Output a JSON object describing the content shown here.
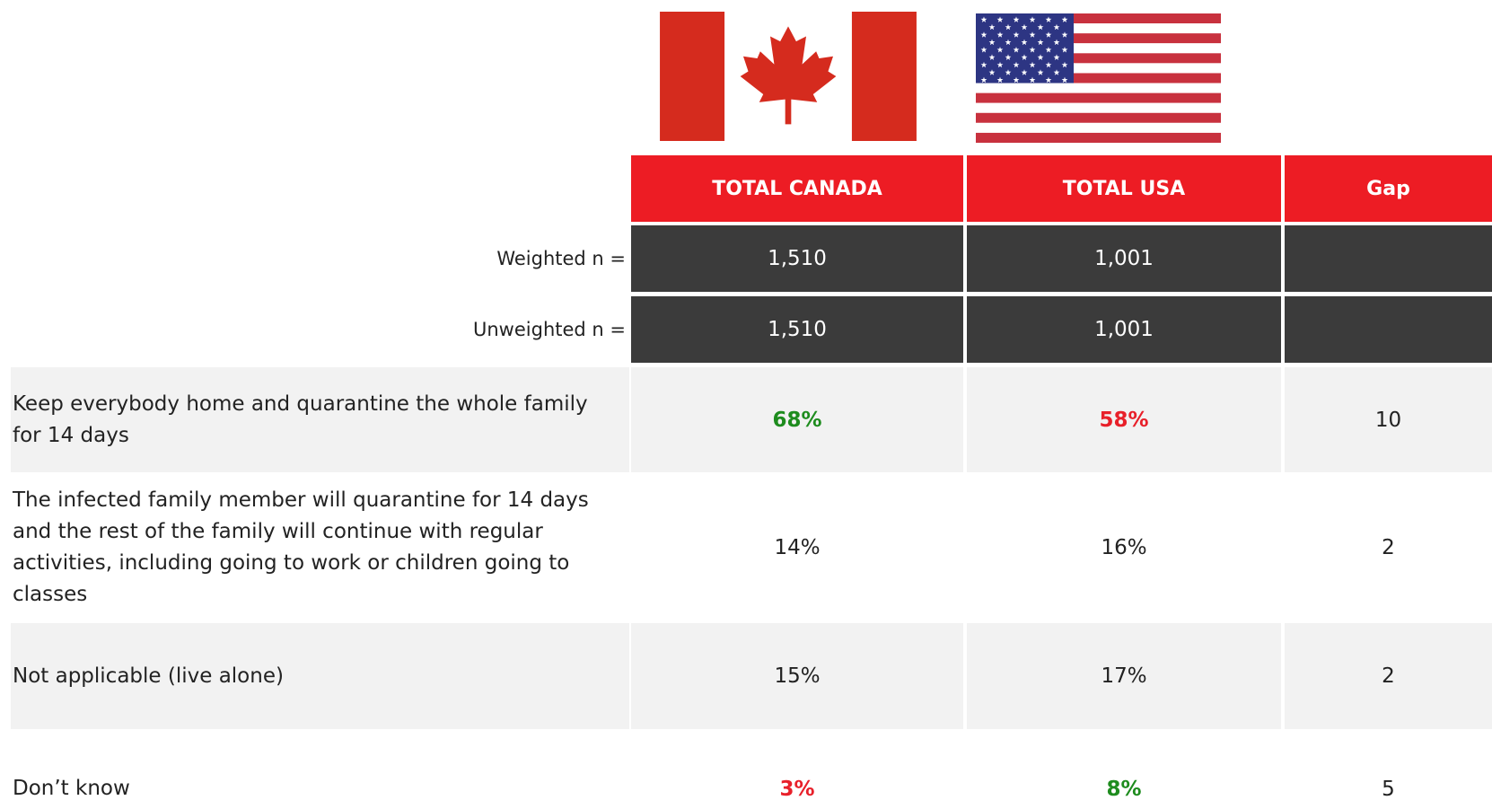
{
  "table": {
    "columns": [
      "TOTAL CANADA",
      "TOTAL USA",
      "Gap"
    ],
    "base_rows": [
      {
        "label": "Weighted n =",
        "values": [
          "1,510",
          "1,001"
        ]
      },
      {
        "label": "Unweighted n =",
        "values": [
          "1,510",
          "1,001"
        ]
      }
    ],
    "rows": [
      {
        "label": "Keep everybody home and quarantine the whole family for 14 days",
        "values": [
          "68%",
          "58%",
          "10"
        ],
        "colors": [
          "#1e8c1e",
          "#e8202a"
        ]
      },
      {
        "label": "The infected family member will quarantine for 14 days and the rest of the family will continue with regular activities, including going to work or children going to classes",
        "values": [
          "14%",
          "16%",
          "2"
        ]
      },
      {
        "label": "Not applicable (live alone)",
        "values": [
          "15%",
          "17%",
          "2"
        ]
      },
      {
        "label": "Don’t know",
        "values": [
          "3%",
          "8%",
          "5"
        ],
        "colors": [
          "#e8202a",
          "#1e8c1e"
        ]
      }
    ]
  }
}
